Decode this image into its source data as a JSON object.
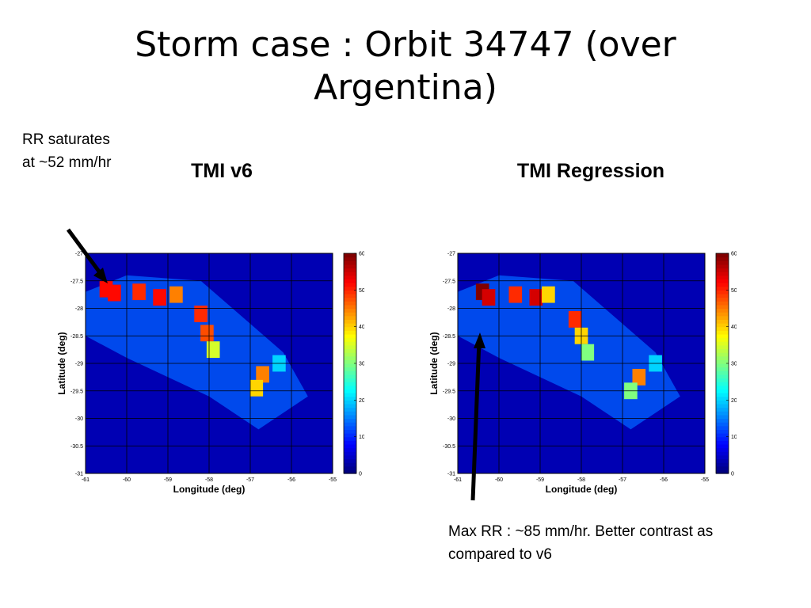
{
  "slide": {
    "title": "Storm case : Orbit 34747 (over Argentina)"
  },
  "annotations": {
    "left_note": "RR saturates at ~52 mm/hr",
    "right_note": "Max RR : ~85 mm/hr. Better contrast as compared to v6"
  },
  "colors": {
    "background_field": "#1a2ba8",
    "gridline": "#000000",
    "arrow": "#000000"
  },
  "chart_data": [
    {
      "type": "heatmap",
      "title": "TMI v6",
      "xlabel": "Longitude (deg)",
      "ylabel": "Latitude (deg)",
      "xlim": [
        -61,
        -55
      ],
      "ylim": [
        -31,
        -27
      ],
      "xticks": [
        "-61",
        "-60",
        "-59",
        "-58",
        "-57",
        "-56",
        "-55"
      ],
      "yticks": [
        "-27",
        "-27.5",
        "-28",
        "-28.5",
        "-29",
        "-29.5",
        "-30",
        "-30.5",
        "-31"
      ],
      "colorbar": {
        "min": 0,
        "max": 60,
        "ticks": [
          "0",
          "10",
          "20",
          "30",
          "40",
          "50",
          "60"
        ]
      },
      "grid": true,
      "max_value": 52,
      "cells": [
        {
          "lon": -60.5,
          "lat": -27.65,
          "value": 52
        },
        {
          "lon": -60.3,
          "lat": -27.72,
          "value": 52
        },
        {
          "lon": -59.7,
          "lat": -27.7,
          "value": 50
        },
        {
          "lon": -59.2,
          "lat": -27.8,
          "value": 52
        },
        {
          "lon": -58.8,
          "lat": -27.75,
          "value": 45
        },
        {
          "lon": -58.2,
          "lat": -28.1,
          "value": 50
        },
        {
          "lon": -58.05,
          "lat": -28.45,
          "value": 48
        },
        {
          "lon": -57.9,
          "lat": -28.75,
          "value": 35
        },
        {
          "lon": -56.7,
          "lat": -29.2,
          "value": 45
        },
        {
          "lon": -56.85,
          "lat": -29.45,
          "value": 40
        },
        {
          "lon": -56.3,
          "lat": -29.0,
          "value": 20
        }
      ]
    },
    {
      "type": "heatmap",
      "title": "TMI Regression",
      "xlabel": "Longitude (deg)",
      "ylabel": "Latitude (deg)",
      "xlim": [
        -61,
        -55
      ],
      "ylim": [
        -31,
        -27
      ],
      "xticks": [
        "-61",
        "-60",
        "-59",
        "-58",
        "-57",
        "-56",
        "-55"
      ],
      "yticks": [
        "-27",
        "-27.5",
        "-28",
        "-28.5",
        "-29",
        "-29.5",
        "-30",
        "-30.5",
        "-31"
      ],
      "colorbar": {
        "min": 0,
        "max": 60,
        "ticks": [
          "0",
          "10",
          "20",
          "30",
          "40",
          "50",
          "60"
        ]
      },
      "grid": true,
      "max_value": 85,
      "cells": [
        {
          "lon": -60.4,
          "lat": -27.7,
          "value": 60
        },
        {
          "lon": -60.25,
          "lat": -27.8,
          "value": 55
        },
        {
          "lon": -59.6,
          "lat": -27.75,
          "value": 50
        },
        {
          "lon": -59.1,
          "lat": -27.8,
          "value": 55
        },
        {
          "lon": -58.8,
          "lat": -27.75,
          "value": 40
        },
        {
          "lon": -58.15,
          "lat": -28.2,
          "value": 50
        },
        {
          "lon": -58.0,
          "lat": -28.5,
          "value": 40
        },
        {
          "lon": -57.85,
          "lat": -28.8,
          "value": 30
        },
        {
          "lon": -56.6,
          "lat": -29.25,
          "value": 45
        },
        {
          "lon": -56.8,
          "lat": -29.5,
          "value": 30
        },
        {
          "lon": -56.2,
          "lat": -29.0,
          "value": 20
        }
      ]
    }
  ]
}
